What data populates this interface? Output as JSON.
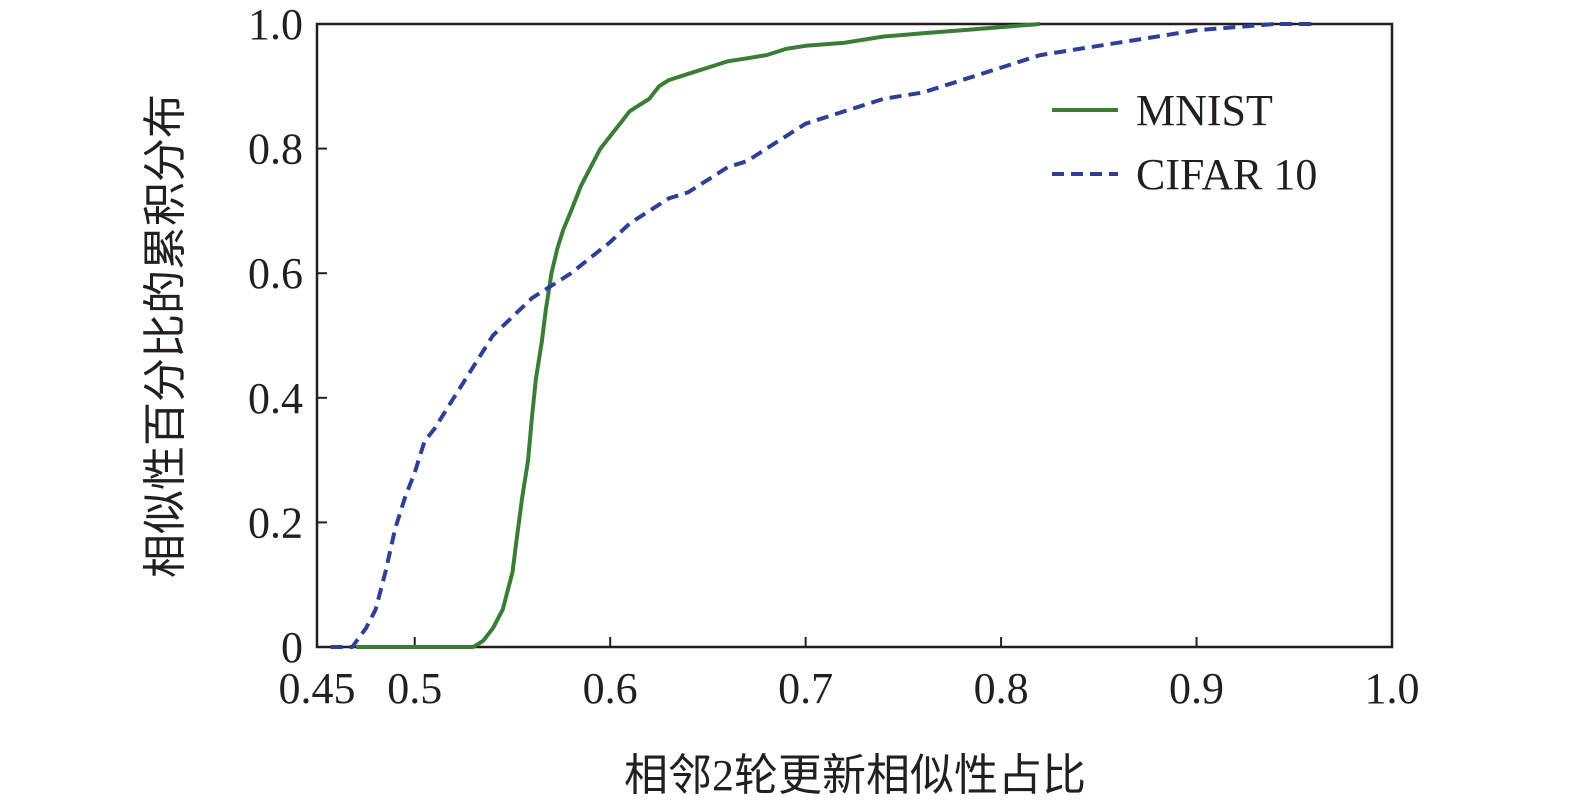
{
  "chart_data": {
    "type": "line",
    "xlabel": "相邻2轮更新相似性占比",
    "ylabel": "相似性百分比的累积分布",
    "xlim": [
      0.45,
      1.0
    ],
    "ylim": [
      0,
      1.0
    ],
    "xticks": [
      0.45,
      0.5,
      0.6,
      0.7,
      0.8,
      0.9,
      1.0
    ],
    "xtick_labels": [
      "0.45",
      "0.5",
      "0.6",
      "0.7",
      "0.8",
      "0.9",
      "1.0"
    ],
    "yticks": [
      0,
      0.2,
      0.4,
      0.6,
      0.8,
      1.0
    ],
    "ytick_labels": [
      "0",
      "0.2",
      "0.4",
      "0.6",
      "0.8",
      "1.0"
    ],
    "grid": false,
    "legend_position": "top-right",
    "series": [
      {
        "name": "MNIST",
        "style": "solid",
        "color": "#3a7d35",
        "x": [
          0.47,
          0.49,
          0.51,
          0.53,
          0.535,
          0.54,
          0.545,
          0.55,
          0.552,
          0.555,
          0.558,
          0.56,
          0.562,
          0.565,
          0.567,
          0.57,
          0.573,
          0.576,
          0.58,
          0.585,
          0.59,
          0.595,
          0.6,
          0.605,
          0.61,
          0.615,
          0.62,
          0.625,
          0.63,
          0.64,
          0.65,
          0.66,
          0.67,
          0.68,
          0.69,
          0.7,
          0.72,
          0.74,
          0.76,
          0.78,
          0.8,
          0.82
        ],
        "y": [
          0,
          0,
          0,
          0,
          0.01,
          0.03,
          0.06,
          0.12,
          0.17,
          0.24,
          0.3,
          0.37,
          0.43,
          0.49,
          0.54,
          0.6,
          0.64,
          0.67,
          0.7,
          0.74,
          0.77,
          0.8,
          0.82,
          0.84,
          0.86,
          0.87,
          0.88,
          0.9,
          0.91,
          0.92,
          0.93,
          0.94,
          0.945,
          0.95,
          0.96,
          0.965,
          0.97,
          0.98,
          0.985,
          0.99,
          0.995,
          1.0
        ]
      },
      {
        "name": "CIFAR 10",
        "style": "dashed",
        "color": "#2e3f98",
        "x": [
          0.457,
          0.468,
          0.475,
          0.48,
          0.485,
          0.49,
          0.495,
          0.5,
          0.505,
          0.51,
          0.52,
          0.53,
          0.54,
          0.55,
          0.56,
          0.57,
          0.58,
          0.59,
          0.6,
          0.61,
          0.62,
          0.63,
          0.64,
          0.65,
          0.66,
          0.67,
          0.68,
          0.7,
          0.72,
          0.74,
          0.76,
          0.78,
          0.8,
          0.82,
          0.84,
          0.86,
          0.88,
          0.9,
          0.92,
          0.94,
          0.96
        ],
        "y": [
          0,
          0,
          0.03,
          0.06,
          0.12,
          0.19,
          0.24,
          0.28,
          0.33,
          0.35,
          0.4,
          0.45,
          0.5,
          0.53,
          0.56,
          0.58,
          0.6,
          0.625,
          0.65,
          0.68,
          0.7,
          0.72,
          0.73,
          0.75,
          0.77,
          0.78,
          0.8,
          0.84,
          0.86,
          0.88,
          0.89,
          0.91,
          0.93,
          0.95,
          0.96,
          0.97,
          0.98,
          0.99,
          0.995,
          1.0,
          1.0
        ]
      }
    ]
  }
}
